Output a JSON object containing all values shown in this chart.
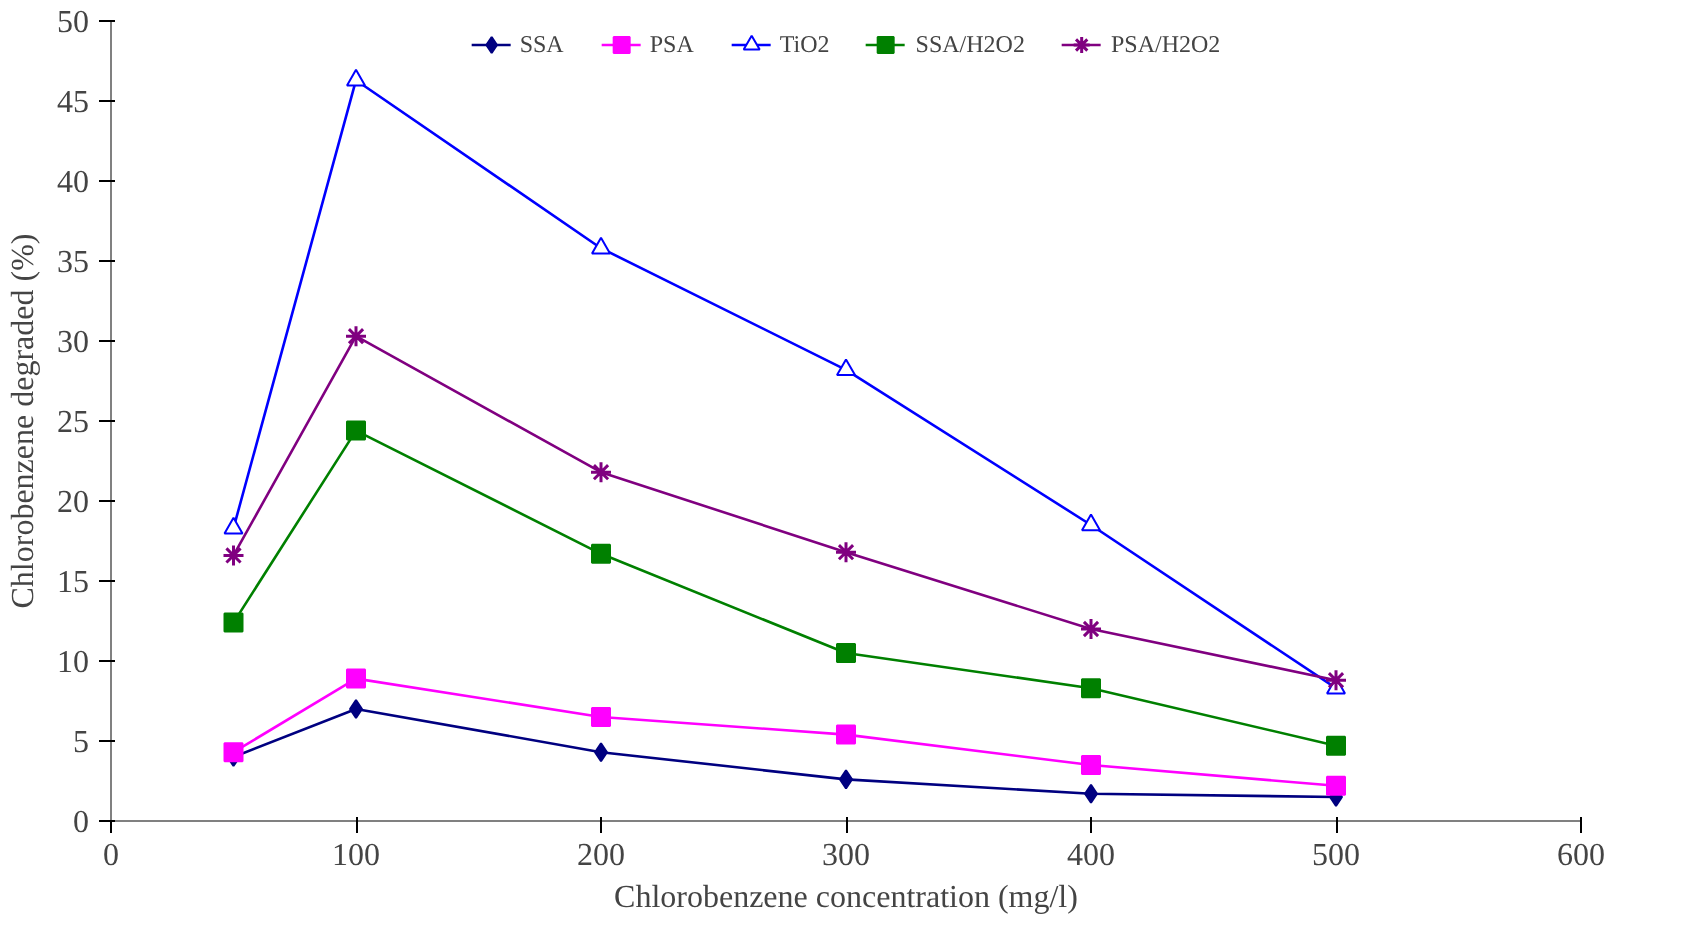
{
  "chart_data": {
    "type": "line",
    "xlabel": "Chlorobenzene concentration (mg/l)",
    "ylabel": "Chlorobenzene degraded (%)",
    "x": [
      50,
      100,
      200,
      300,
      400,
      500
    ],
    "series": [
      {
        "name": "SSA",
        "color": "#000080",
        "marker": "diamond",
        "values": [
          4.0,
          7.0,
          4.3,
          2.6,
          1.7,
          1.5
        ]
      },
      {
        "name": "PSA",
        "color": "#ff00ff",
        "marker": "square",
        "values": [
          4.3,
          8.9,
          6.5,
          5.4,
          3.5,
          2.2
        ]
      },
      {
        "name": "TiO2",
        "color": "#0000ff",
        "marker": "triangle",
        "values": [
          18.3,
          46.3,
          35.8,
          28.2,
          18.5,
          8.3
        ]
      },
      {
        "name": "SSA/H2O2",
        "color": "#008000",
        "marker": "square",
        "values": [
          12.4,
          24.4,
          16.7,
          10.5,
          8.3,
          4.7
        ]
      },
      {
        "name": "PSA/H2O2",
        "color": "#800080",
        "marker": "cross",
        "values": [
          16.6,
          30.3,
          21.8,
          16.8,
          12.0,
          8.8
        ]
      }
    ],
    "xlim": [
      0,
      600
    ],
    "xticks": [
      0,
      100,
      200,
      300,
      400,
      500,
      600
    ],
    "ylim": [
      0,
      50
    ],
    "yticks": [
      0,
      5,
      10,
      15,
      20,
      25,
      30,
      35,
      40,
      45,
      50
    ],
    "grid": false,
    "legend": "top",
    "line_style": "solid"
  }
}
